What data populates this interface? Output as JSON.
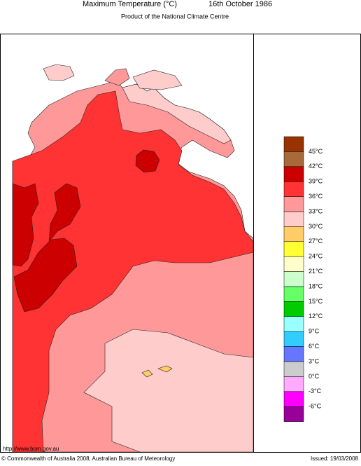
{
  "header": {
    "title": "Maximum Temperature (°C)",
    "date": "16th October 1986",
    "subtitle": "Product of the National Climate Centre"
  },
  "legend": {
    "labels": [
      "45°C",
      "42°C",
      "39°C",
      "36°C",
      "33°C",
      "30°C",
      "27°C",
      "24°C",
      "21°C",
      "18°C",
      "15°C",
      "12°C",
      "9°C",
      "6°C",
      "3°C",
      "0°C",
      "-3°C",
      "-6°C"
    ],
    "colors": [
      "#993300",
      "#a86a3a",
      "#cc0000",
      "#ff3333",
      "#ff9999",
      "#ffcccc",
      "#ffcc66",
      "#ffff33",
      "#ffffcc",
      "#ccffcc",
      "#66ff66",
      "#00cc00",
      "#99ffff",
      "#33ccff",
      "#6677ff",
      "#cccccc",
      "#ffaaff",
      "#ff00ff",
      "#990099"
    ]
  },
  "footer": {
    "url": "http://www.bom.gov.au",
    "copyright": "© Commonwealth of Australia 2008, Australian Bureau of Meteorology",
    "issued": "Issued: 19/03/2008"
  }
}
